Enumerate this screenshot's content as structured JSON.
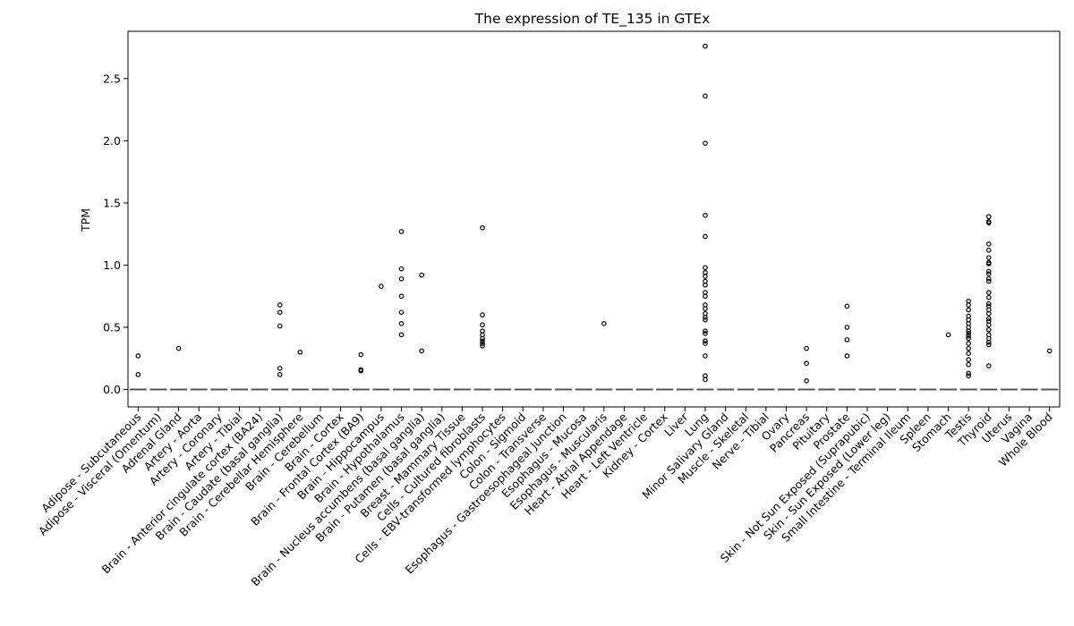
{
  "chart_data": {
    "type": "box",
    "title": "The expression of TE_135 in GTEx",
    "xlabel": "",
    "ylabel": "TPM",
    "ylim": [
      -0.14,
      2.88
    ],
    "yticks": [
      0.0,
      0.5,
      1.0,
      1.5,
      2.0,
      2.5
    ],
    "ytick_labels": [
      "0.0",
      "0.5",
      "1.0",
      "1.5",
      "2.0",
      "2.5"
    ],
    "grid": false,
    "categories": [
      "Adipose - Subcutaneous",
      "Adipose - Visceral (Omentum)",
      "Adrenal Gland",
      "Artery - Aorta",
      "Artery - Coronary",
      "Artery - Tibial",
      "Brain - Anterior cingulate cortex (BA24)",
      "Brain - Caudate (basal ganglia)",
      "Brain - Cerebellar Hemisphere",
      "Brain - Cerebellum",
      "Brain - Cortex",
      "Brain - Frontal Cortex (BA9)",
      "Brain - Hippocampus",
      "Brain - Hypothalamus",
      "Brain - Nucleus accumbens (basal ganglia)",
      "Brain - Putamen (basal ganglia)",
      "Breast - Mammary Tissue",
      "Cells - Cultured fibroblasts",
      "Cells - EBV-transformed lymphocytes",
      "Colon - Sigmoid",
      "Colon - Transverse",
      "Esophagus - Gastroesophageal Junction",
      "Esophagus - Mucosa",
      "Esophagus - Muscularis",
      "Heart - Atrial Appendage",
      "Heart - Left Ventricle",
      "Kidney - Cortex",
      "Liver",
      "Lung",
      "Minor Salivary Gland",
      "Muscle - Skeletal",
      "Nerve - Tibial",
      "Ovary",
      "Pancreas",
      "Pituitary",
      "Prostate",
      "Skin - Not Sun Exposed (Suprapubic)",
      "Skin - Sun Exposed (Lower leg)",
      "Small Intestine - Terminal Ileum",
      "Spleen",
      "Stomach",
      "Testis",
      "Thyroid",
      "Uterus",
      "Vagina",
      "Whole Blood"
    ],
    "medians": [
      0,
      0,
      0,
      0,
      0,
      0,
      0,
      0,
      0,
      0,
      0,
      0,
      0,
      0,
      0,
      0,
      0,
      0,
      0,
      0,
      0,
      0,
      0,
      0,
      0,
      0,
      0,
      0,
      0,
      0,
      0,
      0,
      0,
      0,
      0,
      0,
      0,
      0,
      0,
      0,
      0,
      0,
      0,
      0,
      0,
      0
    ],
    "outliers": [
      [
        0.27,
        0.12
      ],
      [],
      [
        0.33
      ],
      [],
      [],
      [],
      [],
      [
        0.68,
        0.62,
        0.51,
        0.17,
        0.12
      ],
      [
        0.3
      ],
      [],
      [],
      [
        0.28,
        0.16,
        0.15
      ],
      [
        0.83
      ],
      [
        1.27,
        0.97,
        0.89,
        0.75,
        0.62,
        0.53,
        0.44
      ],
      [
        0.92,
        0.31
      ],
      [],
      [],
      [
        1.3,
        0.6,
        0.52,
        0.47,
        0.44,
        0.41,
        0.39,
        0.37,
        0.35
      ],
      [],
      [],
      [],
      [],
      [],
      [
        0.53
      ],
      [],
      [],
      [],
      [],
      [
        2.76,
        2.36,
        1.98,
        1.4,
        1.23,
        0.98,
        0.94,
        0.91,
        0.87,
        0.84,
        0.78,
        0.75,
        0.68,
        0.65,
        0.61,
        0.58,
        0.56,
        0.47,
        0.45,
        0.39,
        0.37,
        0.27,
        0.11,
        0.08
      ],
      [],
      [],
      [],
      [],
      [
        0.33,
        0.21,
        0.07
      ],
      [],
      [
        0.67,
        0.5,
        0.4,
        0.27
      ],
      [],
      [],
      [],
      [],
      [
        0.44
      ],
      [
        0.71,
        0.68,
        0.64,
        0.59,
        0.56,
        0.53,
        0.5,
        0.47,
        0.45,
        0.43,
        0.41,
        0.37,
        0.33,
        0.29,
        0.24,
        0.2,
        0.13,
        0.11
      ],
      [
        1.39,
        1.35,
        1.34,
        1.17,
        1.12,
        1.06,
        1.02,
        1.01,
        0.95,
        0.93,
        0.89,
        0.87,
        0.78,
        0.74,
        0.69,
        0.67,
        0.64,
        0.61,
        0.57,
        0.55,
        0.52,
        0.48,
        0.44,
        0.41,
        0.38,
        0.36,
        0.19
      ],
      [],
      [],
      [
        0.31
      ]
    ]
  }
}
